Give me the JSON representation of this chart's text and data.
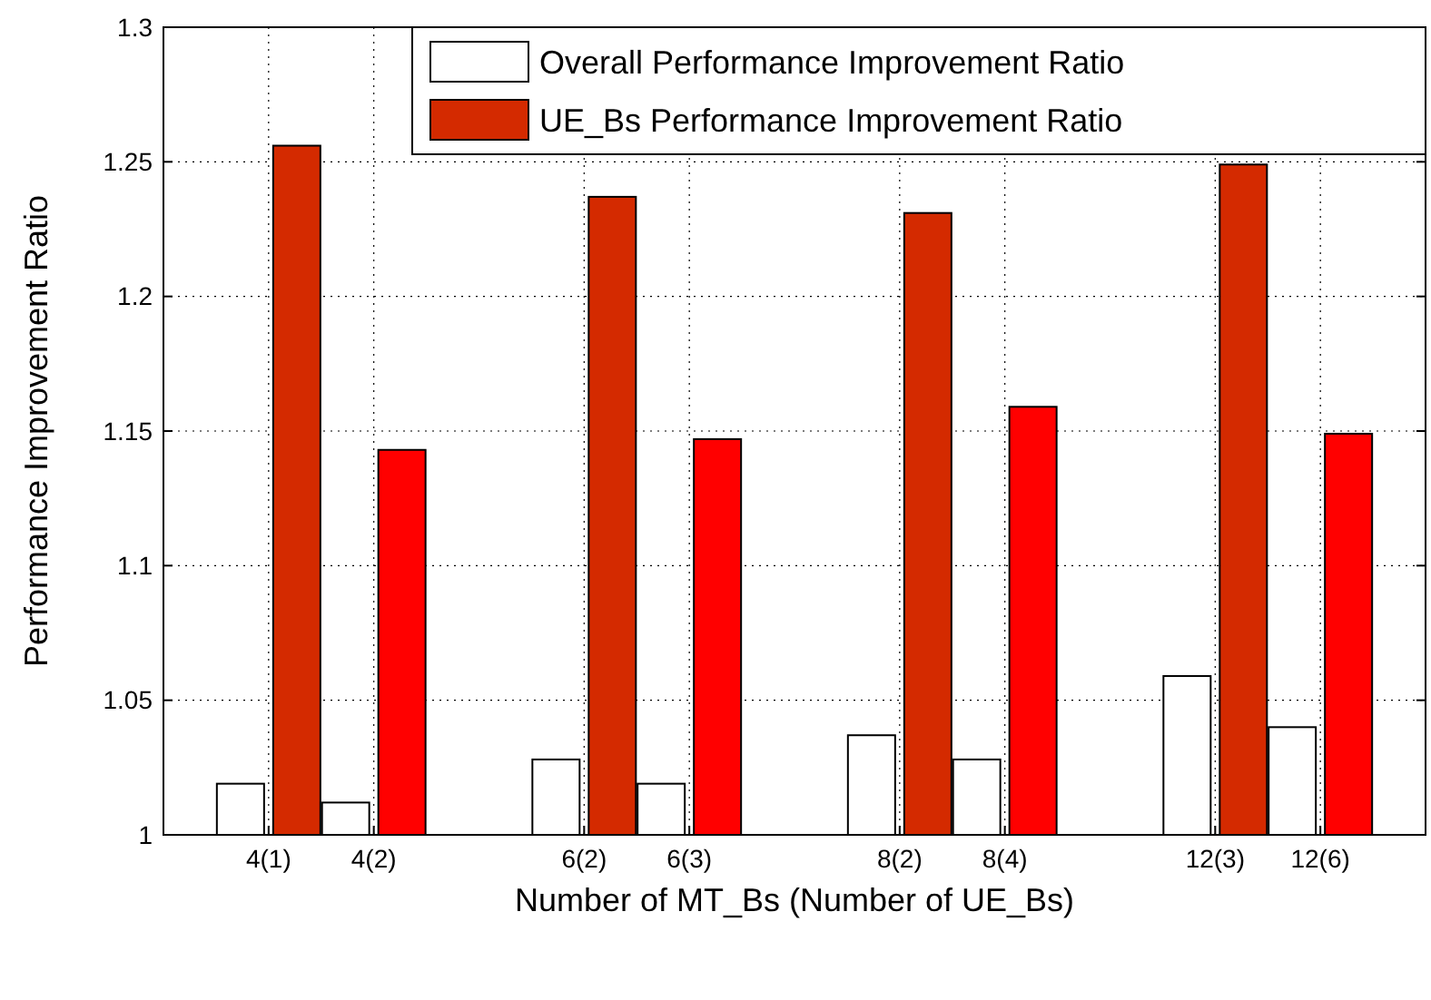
{
  "chart_data": {
    "type": "bar",
    "xlabel": "Number of MT_Bs (Number of UE_Bs)",
    "ylabel": "Performance Improvement Ratio",
    "categories": [
      "4(1)",
      "4(2)",
      null,
      "6(2)",
      "6(3)",
      null,
      "8(2)",
      "8(4)",
      null,
      "12(3)",
      "12(6)"
    ],
    "series": [
      {
        "name": "Overall Performance Improvement Ratio",
        "color": "#ffffff",
        "values": [
          1.019,
          1.012,
          null,
          1.028,
          1.019,
          null,
          1.037,
          1.028,
          null,
          1.059,
          1.04
        ]
      },
      {
        "name": "UE_Bs Performance Improvement Ratio",
        "color": "#d42a00",
        "colors": [
          "#d42a00",
          "#ff0000",
          null,
          "#d42a00",
          "#ff0000",
          null,
          "#d42a00",
          "#ff0000",
          null,
          "#d42a00",
          "#ff0000"
        ],
        "values": [
          1.256,
          1.143,
          null,
          1.237,
          1.147,
          null,
          1.231,
          1.159,
          null,
          1.249,
          1.149
        ]
      }
    ],
    "ylim": [
      1,
      1.3
    ],
    "yticks": [
      1,
      1.05,
      1.1,
      1.15,
      1.2,
      1.25,
      1.3
    ],
    "grid": true,
    "legend": "top right"
  }
}
